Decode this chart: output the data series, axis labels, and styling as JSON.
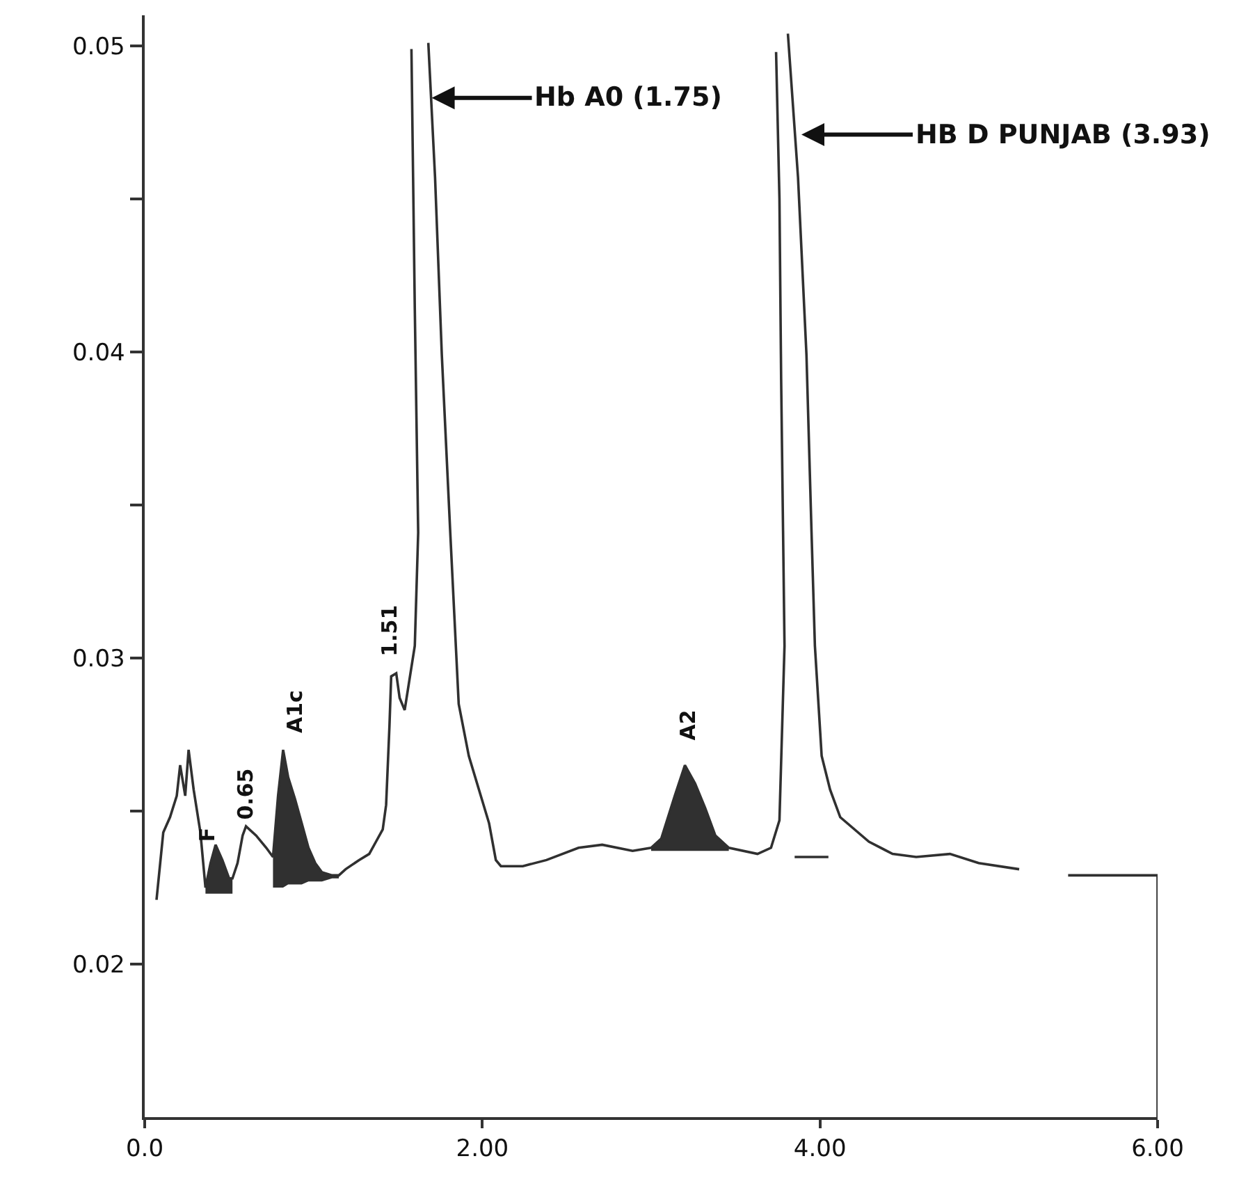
{
  "chart_data": {
    "type": "line",
    "series": [
      {
        "color": "#303030",
        "x": [
          0.07,
          0.11,
          0.15,
          0.19,
          0.21,
          0.24,
          0.26,
          0.29,
          0.33,
          0.36,
          0.39,
          0.42,
          0.46,
          0.5,
          0.52,
          0.55,
          0.58,
          0.6,
          0.66,
          0.72,
          0.76,
          0.79,
          0.82,
          0.85,
          0.89,
          0.93,
          0.97,
          1.01,
          1.05,
          1.11,
          1.15,
          1.19,
          1.27,
          1.33,
          1.37,
          1.41,
          1.43,
          1.45,
          1.46,
          1.49,
          1.51,
          1.54,
          1.6,
          1.62,
          1.6,
          1.58,
          1.63,
          1.68,
          1.72,
          1.76,
          1.81,
          1.86,
          1.92,
          1.98,
          2.04,
          2.08,
          2.11,
          2.24,
          2.38,
          2.57,
          2.71,
          2.89,
          3.0,
          3.06,
          3.14,
          3.2,
          3.26,
          3.32,
          3.38,
          3.46,
          3.63,
          3.71,
          3.76,
          3.79,
          3.77,
          3.76,
          3.74,
          3.775,
          3.81,
          3.87,
          3.92,
          3.95,
          3.97,
          4.01,
          4.06,
          4.12,
          4.29,
          4.43,
          4.57,
          4.77,
          4.94,
          5.18,
          5.32,
          5.47,
          5.64,
          6.0,
          6.0
        ],
        "values": [
          0.0221,
          0.0243,
          0.0248,
          0.0255,
          0.0265,
          0.0255,
          0.027,
          0.0257,
          0.0243,
          0.0225,
          0.0233,
          0.0239,
          0.0234,
          0.0228,
          0.0228,
          0.0233,
          0.0242,
          0.0245,
          0.0242,
          0.0238,
          0.0235,
          0.0255,
          0.027,
          0.0261,
          0.0254,
          0.0246,
          0.0238,
          0.0233,
          0.023,
          0.0229,
          0.0229,
          0.0231,
          0.0234,
          0.0236,
          0.024,
          0.0244,
          0.0252,
          0.0278,
          0.0294,
          0.0295,
          0.0287,
          0.0283,
          0.0304,
          0.0341,
          0.0414,
          0.0499,
          null,
          0.0501,
          0.0457,
          0.0399,
          0.0341,
          0.0285,
          0.0268,
          0.0257,
          0.0246,
          0.0234,
          0.0232,
          0.0232,
          0.0234,
          0.0238,
          0.0239,
          0.0237,
          0.0238,
          0.0241,
          0.0255,
          0.0265,
          0.0259,
          0.0251,
          0.0242,
          0.0238,
          0.0236,
          0.0238,
          0.0247,
          0.0304,
          0.0391,
          0.045,
          0.0498,
          null,
          0.0504,
          0.0457,
          0.0399,
          0.0341,
          0.0304,
          0.0268,
          0.0257,
          0.0248,
          0.024,
          0.0236,
          0.0235,
          0.0236,
          0.0233,
          0.0231,
          null,
          0.0229,
          0.0229,
          0.0229,
          0.015
        ],
        "lower": [
          null,
          null,
          null,
          null,
          null,
          null,
          null,
          null,
          null,
          0.0223,
          0.0223,
          0.0223,
          0.0223,
          0.0223,
          0.0223,
          null,
          null,
          null,
          null,
          null,
          0.0225,
          0.0225,
          0.0225,
          0.0226,
          0.0226,
          0.0226,
          0.0227,
          0.0227,
          0.0227,
          0.0228,
          0.0228,
          null,
          null,
          null,
          null,
          null,
          null,
          null,
          null,
          null,
          null,
          null,
          null,
          null,
          null,
          null,
          null,
          null,
          null,
          null,
          null,
          null,
          null,
          null,
          null,
          null,
          null,
          null,
          null,
          null,
          null,
          null,
          0.0237,
          0.0237,
          0.0237,
          0.0237,
          0.0237,
          0.0237,
          0.0237,
          0.0237,
          null,
          null,
          null,
          null,
          null,
          null,
          null,
          null,
          null,
          null,
          null,
          null,
          null,
          null,
          null,
          null,
          null,
          null,
          null,
          null,
          null,
          null,
          null,
          null,
          null,
          null,
          null
        ],
        "upper": [
          null,
          null,
          null,
          null,
          null,
          null,
          null,
          null,
          null,
          0.0225,
          0.0233,
          0.0239,
          0.0234,
          0.0228,
          0.0228,
          null,
          null,
          null,
          null,
          null,
          0.0235,
          0.0255,
          0.027,
          0.0261,
          0.0254,
          0.0246,
          0.0238,
          0.0233,
          0.023,
          0.0229,
          0.0229,
          null,
          null,
          null,
          null,
          null,
          null,
          null,
          null,
          null,
          null,
          null,
          null,
          null,
          null,
          null,
          null,
          null,
          null,
          null,
          null,
          null,
          null,
          null,
          null,
          null,
          null,
          null,
          null,
          null,
          null,
          null,
          0.0238,
          0.0241,
          0.0255,
          0.0265,
          0.0259,
          0.0251,
          0.0242,
          0.0238,
          null,
          null,
          null,
          null,
          null,
          null,
          null,
          null,
          null,
          null,
          null,
          null,
          null,
          null,
          null,
          null,
          null,
          null,
          null,
          null,
          null,
          null,
          null,
          null,
          null,
          null,
          null
        ]
      },
      {
        "color": "#303030",
        "x": [
          3.85,
          4.05
        ],
        "values": [
          0.0235,
          0.0235
        ]
      }
    ],
    "xlim": [
      0,
      6
    ],
    "xticks": [
      {
        "value": 0,
        "label": "0.0"
      },
      {
        "value": 2,
        "label": "2.00"
      },
      {
        "value": 4,
        "label": "4.00"
      },
      {
        "value": 6,
        "label": "6.00"
      }
    ],
    "ylim": [
      0.015,
      0.051
    ],
    "yticks": [
      0.02,
      {
        "value": 0.025,
        "label": null
      },
      0.03,
      {
        "value": 0.035,
        "label": null
      },
      0.04,
      {
        "value": 0.045,
        "label": null
      },
      0.05
    ],
    "line_style": "solid",
    "annotations": [
      {
        "text": "Hb A0 (1.75)",
        "x": 1.7,
        "y": 0.0483
      },
      {
        "text": "HB D PUNJAB (3.93)",
        "x": 3.89,
        "y": 0.0471
      },
      {
        "text": "F",
        "x": 0.42,
        "y": 0.0239
      },
      {
        "text": "0.65",
        "x": 0.6,
        "y": 0.0245
      },
      {
        "text": "A1c",
        "x": 0.82,
        "y": 0.027
      },
      {
        "text": "1.51",
        "x": 1.47,
        "y": 0.0295
      },
      {
        "text": "A2",
        "x": 3.2,
        "y": 0.0265
      }
    ]
  }
}
